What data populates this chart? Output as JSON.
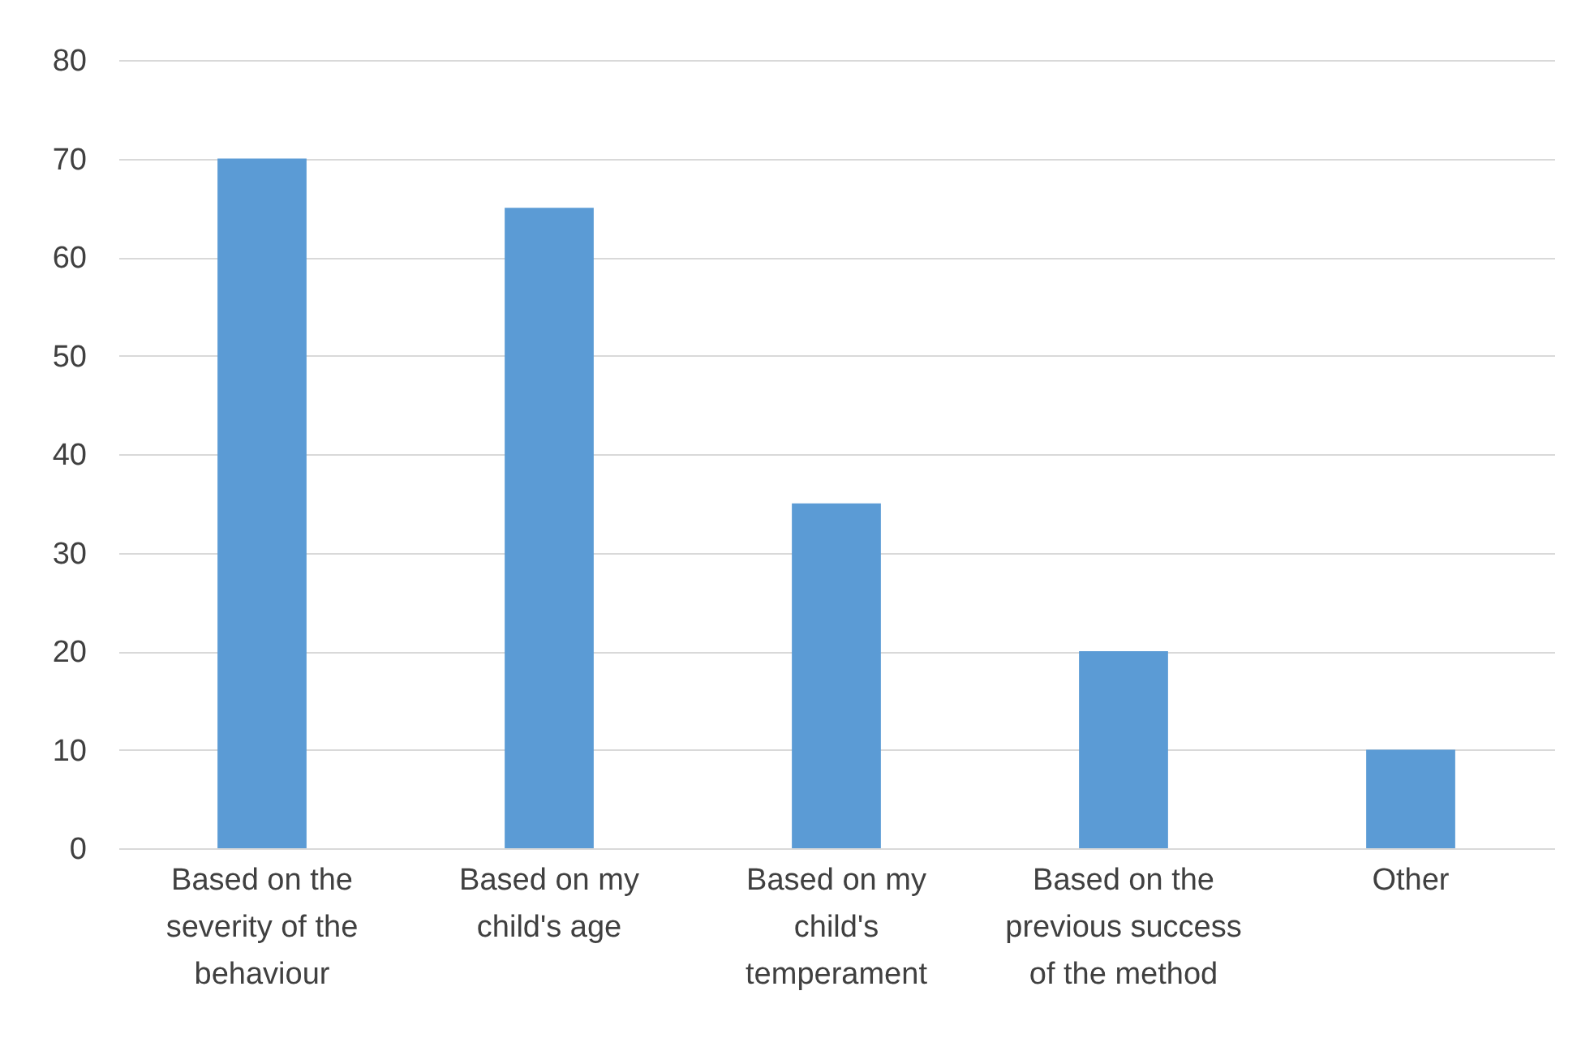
{
  "chart_data": {
    "type": "bar",
    "categories": [
      "Based on the severity of the behaviour",
      "Based on my child's age",
      "Based on my child's temperament",
      "Based on the previous success of the method",
      "Other"
    ],
    "values": [
      70,
      65,
      35,
      20,
      10
    ],
    "color": "#5b9bd5",
    "ylim": [
      0,
      80
    ],
    "yticks": [
      0,
      10,
      20,
      30,
      40,
      50,
      60,
      70,
      80
    ],
    "grid": "y"
  }
}
